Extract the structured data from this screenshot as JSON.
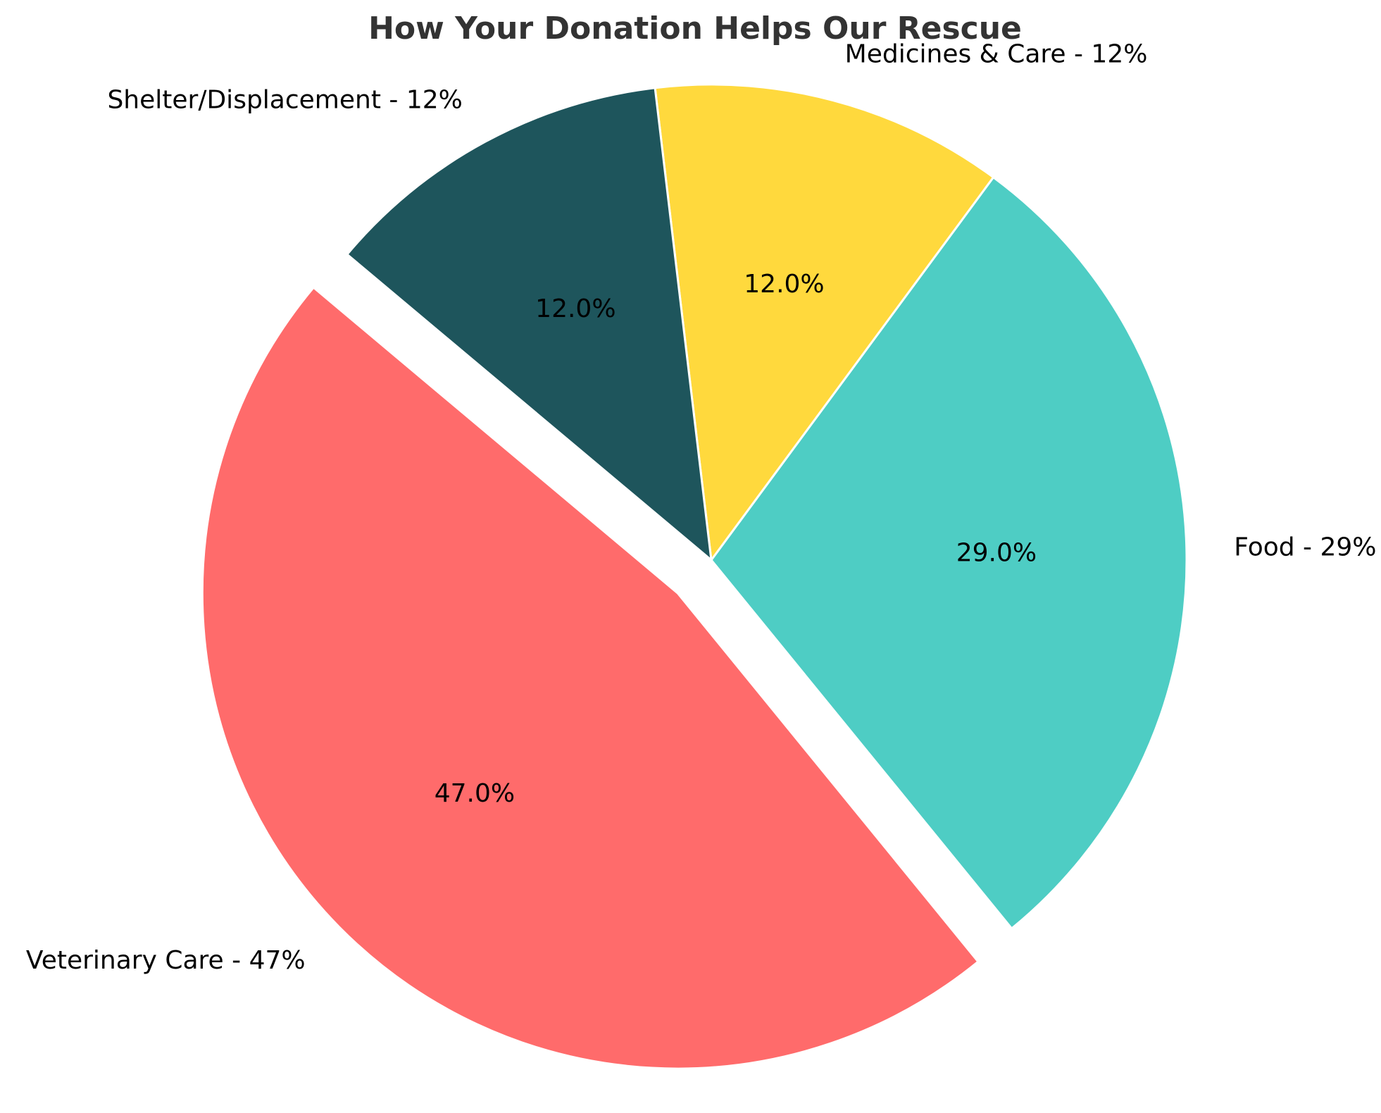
{
  "chart_data": {
    "type": "pie",
    "title": "How Your Donation Helps Our Rescue",
    "slices": [
      {
        "label": "Veterinary Care - 47%",
        "value": 47.0,
        "pct_label": "47.0%",
        "color": "#FF6B6B",
        "exploded": true
      },
      {
        "label": "Food - 29%",
        "value": 29.0,
        "pct_label": "29.0%",
        "color": "#4ECDC4",
        "exploded": false
      },
      {
        "label": "Medicines & Care - 12%",
        "value": 12.0,
        "pct_label": "12.0%",
        "color": "#FFD93D",
        "exploded": false
      },
      {
        "label": "Shelter/Displacement - 12%",
        "value": 12.0,
        "pct_label": "12.0%",
        "color": "#1E555C",
        "exploded": false
      }
    ],
    "start_angle_deg": 140,
    "direction": "counterclockwise",
    "legend": "none"
  }
}
